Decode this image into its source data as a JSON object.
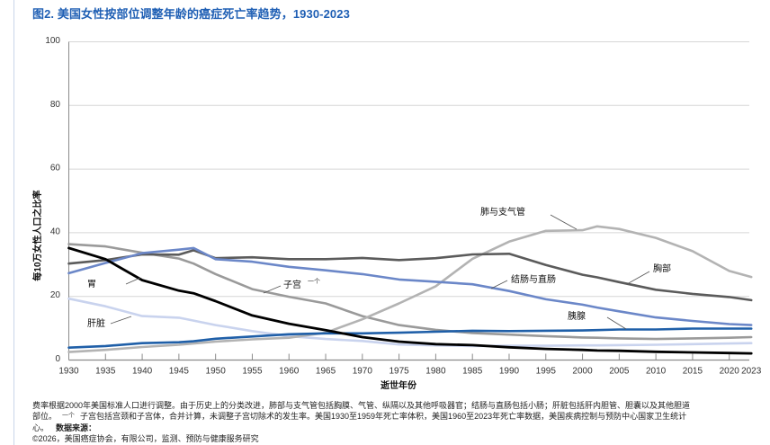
{
  "title": "图2. 美国女性按部位调整年龄的癌症死亡率趋势，1930-2023",
  "chart_data": {
    "type": "line",
    "title": "图2. 美国女性按部位调整年龄的癌症死亡率趋势，1930-2023",
    "xlabel": "逝世年份",
    "ylabel": "每10万女性人口之比率",
    "xlim": [
      1930,
      2023
    ],
    "ylim": [
      0,
      100
    ],
    "grid": true,
    "legend": "inline-annotations",
    "yticks": [
      {
        "value": 0,
        "label": "0"
      },
      {
        "value": 20,
        "label": "20"
      },
      {
        "value": 40,
        "label": "40"
      },
      {
        "value": 60,
        "label": "60"
      },
      {
        "value": 80,
        "label": "80"
      },
      {
        "value": 100,
        "label": "100"
      }
    ],
    "xticks": [
      {
        "value": 1930,
        "label": "1930"
      },
      {
        "value": 1935,
        "label": "1935"
      },
      {
        "value": 1940,
        "label": "1940"
      },
      {
        "value": 1945,
        "label": "1945"
      },
      {
        "value": 1950,
        "label": "1950"
      },
      {
        "value": 1955,
        "label": "1955"
      },
      {
        "value": 1960,
        "label": "1960"
      },
      {
        "value": 1965,
        "label": "1965"
      },
      {
        "value": 1970,
        "label": "1970"
      },
      {
        "value": 1975,
        "label": "1975"
      },
      {
        "value": 1980,
        "label": "1980"
      },
      {
        "value": 1985,
        "label": "1985"
      },
      {
        "value": 1990,
        "label": "1990"
      },
      {
        "value": 1995,
        "label": "1995"
      },
      {
        "value": 2000,
        "label": "2000"
      },
      {
        "value": 2005,
        "label": "2005"
      },
      {
        "value": 2010,
        "label": "2010"
      },
      {
        "value": 2015,
        "label": "2015"
      },
      {
        "value": 2020,
        "label": "2020"
      },
      {
        "value": 2023,
        "label": "2023"
      }
    ],
    "x": [
      1930,
      1935,
      1940,
      1945,
      1947,
      1950,
      1955,
      1960,
      1965,
      1970,
      1975,
      1980,
      1985,
      1990,
      1995,
      2000,
      2002,
      2005,
      2010,
      2015,
      2020,
      2023
    ],
    "series": [
      {
        "key": "uterus",
        "name": "子宫",
        "color": "#9a9a9a",
        "values": [
          36.4,
          35.7,
          33.7,
          31.9,
          30.3,
          27.0,
          22.3,
          19.9,
          17.8,
          13.8,
          11.0,
          9.5,
          8.5,
          8.0,
          7.5,
          7.1,
          7.0,
          6.8,
          6.6,
          6.8,
          7.0,
          7.2
        ]
      },
      {
        "key": "liver",
        "name": "肝脏",
        "color": "#c9d3ee",
        "values": [
          19.3,
          16.9,
          13.8,
          13.3,
          12.4,
          11.0,
          9.1,
          7.5,
          6.6,
          6.0,
          4.9,
          4.6,
          4.4,
          4.5,
          4.5,
          4.6,
          4.6,
          4.7,
          4.8,
          5.0,
          5.2,
          5.3
        ]
      },
      {
        "key": "lung",
        "name": "肺与支气管",
        "color": "#b3b3b3",
        "values": [
          2.5,
          3.2,
          4.1,
          4.8,
          5.2,
          5.8,
          6.5,
          7.0,
          8.6,
          12.8,
          17.8,
          23.2,
          31.8,
          37.2,
          40.6,
          40.8,
          42.0,
          41.2,
          38.4,
          34.2,
          28.0,
          26.1
        ]
      },
      {
        "key": "pancreas",
        "name": "胰腺",
        "color": "#1f5fa8",
        "values": [
          3.9,
          4.4,
          5.3,
          5.6,
          5.9,
          6.7,
          7.4,
          8.1,
          8.4,
          8.4,
          8.6,
          8.9,
          9.2,
          9.1,
          9.2,
          9.3,
          9.4,
          9.6,
          9.6,
          9.9,
          9.9,
          9.9
        ]
      },
      {
        "key": "breast",
        "name": "胸部",
        "color": "#5b5b5b",
        "values": [
          30.3,
          31.4,
          33.2,
          33.1,
          34.5,
          32.0,
          32.3,
          31.7,
          31.7,
          32.1,
          31.4,
          32.0,
          33.2,
          33.4,
          29.9,
          26.8,
          26.0,
          24.5,
          22.1,
          20.8,
          19.8,
          18.8
        ]
      },
      {
        "key": "colorectum",
        "name": "结肠与直肠",
        "color": "#6b87c8",
        "values": [
          27.3,
          30.5,
          33.6,
          34.7,
          35.2,
          31.7,
          30.9,
          29.3,
          28.2,
          27.0,
          25.3,
          24.6,
          23.8,
          21.7,
          19.1,
          17.4,
          16.5,
          15.3,
          13.4,
          12.3,
          11.3,
          11.0
        ]
      },
      {
        "key": "stomach",
        "name": "胃",
        "color": "#000000",
        "values": [
          35.2,
          31.7,
          25.1,
          21.8,
          21.0,
          18.5,
          14.0,
          11.4,
          9.4,
          7.2,
          5.8,
          5.0,
          4.7,
          4.0,
          3.5,
          3.2,
          3.0,
          2.9,
          2.6,
          2.4,
          2.2,
          2.1
        ]
      }
    ],
    "annotations": {
      "lung": "肺与支气管",
      "breast": "胸部",
      "colorectum": "结肠与直肠",
      "pancreas": "胰腺",
      "uterus": "子宫",
      "uterus_mark": "一个",
      "stomach": "胃",
      "liver": "肝脏"
    }
  },
  "footnote": {
    "line1": "费率根据2000年美国标准人口进行调整。由于历史上的分类改进，肺部与支气管包括胸膜、气管、纵隔以及其他呼吸器官；结肠与直肠包括小肠；肝脏包括肝内胆管、胆囊以及其他胆道",
    "line2_prefix": "部位。",
    "line2_mark": "一个",
    "line2_rest": "子宫包括宫颈和子宫体，合并计算，未调整子宫切除术的发生率。美国1930至1959年死亡率体积，美国1960至2023年死亡率数据，美国疾病控制与预防中心国家卫生统计",
    "line3_prefix": "心。",
    "line3_source_label": "数据来源：",
    "line4": "©2026，美国癌症协会，有限公司，监测、预防与健康服务研究"
  }
}
